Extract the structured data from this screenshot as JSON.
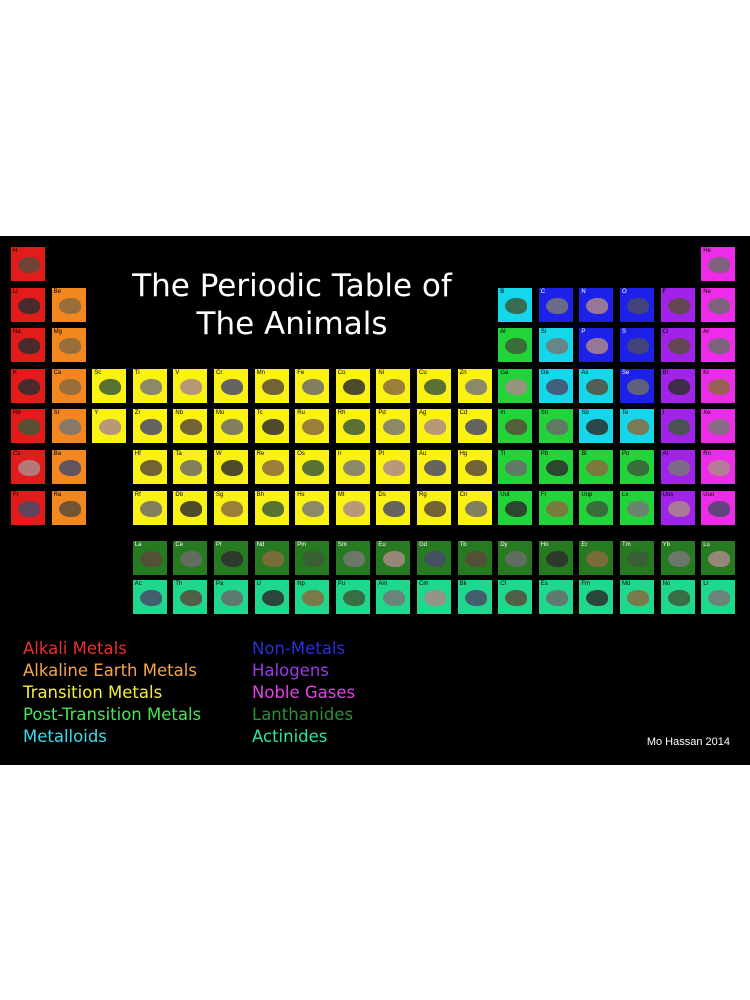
{
  "title_line1": "The Periodic Table of",
  "title_line2": "The Animals",
  "credit": "Mo Hassan 2014",
  "legend_left": [
    {
      "label": "Alkali Metals",
      "color": "#e8312c"
    },
    {
      "label": "Alkaline Earth Metals",
      "color": "#f7a34a"
    },
    {
      "label": "Transition Metals",
      "color": "#f5ef3a"
    },
    {
      "label": "Post-Transition Metals",
      "color": "#46e657"
    },
    {
      "label": "Metalloids",
      "color": "#40d9ea"
    }
  ],
  "legend_right": [
    {
      "label": "Non-Metals",
      "color": "#2a2fd8"
    },
    {
      "label": "Halogens",
      "color": "#9a3be6"
    },
    {
      "label": "Noble Gases",
      "color": "#e245e6"
    },
    {
      "label": "Lanthanides",
      "color": "#2e8f38"
    },
    {
      "label": "Actinides",
      "color": "#31e49a"
    }
  ],
  "category_colors": {
    "alkali": "#e21b1b",
    "alkaline": "#f2861f",
    "transition": "#fbf215",
    "post": "#22d43a",
    "metalloid": "#16d7ea",
    "nonmetal": "#1d20e6",
    "halogen": "#a123ea",
    "noble": "#ef2bea",
    "lanth": "#267a1f",
    "act": "#20d88d"
  },
  "elements": [
    {
      "s": "H",
      "c": "alkali",
      "p": 1,
      "g": 1
    },
    {
      "s": "He",
      "c": "noble",
      "p": 1,
      "g": 18
    },
    {
      "s": "Li",
      "c": "alkali",
      "p": 2,
      "g": 1
    },
    {
      "s": "Be",
      "c": "alkaline",
      "p": 2,
      "g": 2
    },
    {
      "s": "B",
      "c": "metalloid",
      "p": 2,
      "g": 13
    },
    {
      "s": "C",
      "c": "nonmetal",
      "p": 2,
      "g": 14
    },
    {
      "s": "N",
      "c": "nonmetal",
      "p": 2,
      "g": 15
    },
    {
      "s": "O",
      "c": "nonmetal",
      "p": 2,
      "g": 16
    },
    {
      "s": "F",
      "c": "halogen",
      "p": 2,
      "g": 17
    },
    {
      "s": "Ne",
      "c": "noble",
      "p": 2,
      "g": 18
    },
    {
      "s": "Na",
      "c": "alkali",
      "p": 3,
      "g": 1
    },
    {
      "s": "Mg",
      "c": "alkaline",
      "p": 3,
      "g": 2
    },
    {
      "s": "Al",
      "c": "post",
      "p": 3,
      "g": 13
    },
    {
      "s": "Si",
      "c": "metalloid",
      "p": 3,
      "g": 14
    },
    {
      "s": "P",
      "c": "nonmetal",
      "p": 3,
      "g": 15
    },
    {
      "s": "S",
      "c": "nonmetal",
      "p": 3,
      "g": 16
    },
    {
      "s": "Cl",
      "c": "halogen",
      "p": 3,
      "g": 17
    },
    {
      "s": "Ar",
      "c": "noble",
      "p": 3,
      "g": 18
    },
    {
      "s": "K",
      "c": "alkali",
      "p": 4,
      "g": 1
    },
    {
      "s": "Ca",
      "c": "alkaline",
      "p": 4,
      "g": 2
    },
    {
      "s": "Sc",
      "c": "transition",
      "p": 4,
      "g": 3
    },
    {
      "s": "Ti",
      "c": "transition",
      "p": 4,
      "g": 4
    },
    {
      "s": "V",
      "c": "transition",
      "p": 4,
      "g": 5
    },
    {
      "s": "Cr",
      "c": "transition",
      "p": 4,
      "g": 6
    },
    {
      "s": "Mn",
      "c": "transition",
      "p": 4,
      "g": 7
    },
    {
      "s": "Fe",
      "c": "transition",
      "p": 4,
      "g": 8
    },
    {
      "s": "Co",
      "c": "transition",
      "p": 4,
      "g": 9
    },
    {
      "s": "Ni",
      "c": "transition",
      "p": 4,
      "g": 10
    },
    {
      "s": "Cu",
      "c": "transition",
      "p": 4,
      "g": 11
    },
    {
      "s": "Zn",
      "c": "transition",
      "p": 4,
      "g": 12
    },
    {
      "s": "Ga",
      "c": "post",
      "p": 4,
      "g": 13
    },
    {
      "s": "Ge",
      "c": "metalloid",
      "p": 4,
      "g": 14
    },
    {
      "s": "As",
      "c": "metalloid",
      "p": 4,
      "g": 15
    },
    {
      "s": "Se",
      "c": "nonmetal",
      "p": 4,
      "g": 16
    },
    {
      "s": "Br",
      "c": "halogen",
      "p": 4,
      "g": 17
    },
    {
      "s": "Kr",
      "c": "noble",
      "p": 4,
      "g": 18
    },
    {
      "s": "Rb",
      "c": "alkali",
      "p": 5,
      "g": 1
    },
    {
      "s": "Sr",
      "c": "alkaline",
      "p": 5,
      "g": 2
    },
    {
      "s": "Y",
      "c": "transition",
      "p": 5,
      "g": 3
    },
    {
      "s": "Zr",
      "c": "transition",
      "p": 5,
      "g": 4
    },
    {
      "s": "Nb",
      "c": "transition",
      "p": 5,
      "g": 5
    },
    {
      "s": "Mo",
      "c": "transition",
      "p": 5,
      "g": 6
    },
    {
      "s": "Tc",
      "c": "transition",
      "p": 5,
      "g": 7
    },
    {
      "s": "Ru",
      "c": "transition",
      "p": 5,
      "g": 8
    },
    {
      "s": "Rh",
      "c": "transition",
      "p": 5,
      "g": 9
    },
    {
      "s": "Pd",
      "c": "transition",
      "p": 5,
      "g": 10
    },
    {
      "s": "Ag",
      "c": "transition",
      "p": 5,
      "g": 11
    },
    {
      "s": "Cd",
      "c": "transition",
      "p": 5,
      "g": 12
    },
    {
      "s": "In",
      "c": "post",
      "p": 5,
      "g": 13
    },
    {
      "s": "Sn",
      "c": "post",
      "p": 5,
      "g": 14
    },
    {
      "s": "Sb",
      "c": "metalloid",
      "p": 5,
      "g": 15
    },
    {
      "s": "Te",
      "c": "metalloid",
      "p": 5,
      "g": 16
    },
    {
      "s": "I",
      "c": "halogen",
      "p": 5,
      "g": 17
    },
    {
      "s": "Xe",
      "c": "noble",
      "p": 5,
      "g": 18
    },
    {
      "s": "Cs",
      "c": "alkali",
      "p": 6,
      "g": 1
    },
    {
      "s": "Ba",
      "c": "alkaline",
      "p": 6,
      "g": 2
    },
    {
      "s": "Hf",
      "c": "transition",
      "p": 6,
      "g": 4
    },
    {
      "s": "Ta",
      "c": "transition",
      "p": 6,
      "g": 5
    },
    {
      "s": "W",
      "c": "transition",
      "p": 6,
      "g": 6
    },
    {
      "s": "Re",
      "c": "transition",
      "p": 6,
      "g": 7
    },
    {
      "s": "Os",
      "c": "transition",
      "p": 6,
      "g": 8
    },
    {
      "s": "Ir",
      "c": "transition",
      "p": 6,
      "g": 9
    },
    {
      "s": "Pt",
      "c": "transition",
      "p": 6,
      "g": 10
    },
    {
      "s": "Au",
      "c": "transition",
      "p": 6,
      "g": 11
    },
    {
      "s": "Hg",
      "c": "transition",
      "p": 6,
      "g": 12
    },
    {
      "s": "Tl",
      "c": "post",
      "p": 6,
      "g": 13
    },
    {
      "s": "Pb",
      "c": "post",
      "p": 6,
      "g": 14
    },
    {
      "s": "Bi",
      "c": "post",
      "p": 6,
      "g": 15
    },
    {
      "s": "Po",
      "c": "post",
      "p": 6,
      "g": 16
    },
    {
      "s": "At",
      "c": "halogen",
      "p": 6,
      "g": 17
    },
    {
      "s": "Rn",
      "c": "noble",
      "p": 6,
      "g": 18
    },
    {
      "s": "Fr",
      "c": "alkali",
      "p": 7,
      "g": 1
    },
    {
      "s": "Ra",
      "c": "alkaline",
      "p": 7,
      "g": 2
    },
    {
      "s": "Rf",
      "c": "transition",
      "p": 7,
      "g": 4
    },
    {
      "s": "Db",
      "c": "transition",
      "p": 7,
      "g": 5
    },
    {
      "s": "Sg",
      "c": "transition",
      "p": 7,
      "g": 6
    },
    {
      "s": "Bh",
      "c": "transition",
      "p": 7,
      "g": 7
    },
    {
      "s": "Hs",
      "c": "transition",
      "p": 7,
      "g": 8
    },
    {
      "s": "Mt",
      "c": "transition",
      "p": 7,
      "g": 9
    },
    {
      "s": "Ds",
      "c": "transition",
      "p": 7,
      "g": 10
    },
    {
      "s": "Rg",
      "c": "transition",
      "p": 7,
      "g": 11
    },
    {
      "s": "Cn",
      "c": "transition",
      "p": 7,
      "g": 12
    },
    {
      "s": "Uut",
      "c": "post",
      "p": 7,
      "g": 13
    },
    {
      "s": "Fl",
      "c": "post",
      "p": 7,
      "g": 14
    },
    {
      "s": "Uup",
      "c": "post",
      "p": 7,
      "g": 15
    },
    {
      "s": "Lv",
      "c": "post",
      "p": 7,
      "g": 16
    },
    {
      "s": "Uus",
      "c": "halogen",
      "p": 7,
      "g": 17
    },
    {
      "s": "Uuo",
      "c": "noble",
      "p": 7,
      "g": 18
    }
  ],
  "f_block": [
    {
      "s": "La",
      "c": "lanth",
      "p": 9,
      "g": 4
    },
    {
      "s": "Ce",
      "c": "lanth",
      "p": 9,
      "g": 5
    },
    {
      "s": "Pr",
      "c": "lanth",
      "p": 9,
      "g": 6
    },
    {
      "s": "Nd",
      "c": "lanth",
      "p": 9,
      "g": 7
    },
    {
      "s": "Pm",
      "c": "lanth",
      "p": 9,
      "g": 8
    },
    {
      "s": "Sm",
      "c": "lanth",
      "p": 9,
      "g": 9
    },
    {
      "s": "Eu",
      "c": "lanth",
      "p": 9,
      "g": 10
    },
    {
      "s": "Gd",
      "c": "lanth",
      "p": 9,
      "g": 11
    },
    {
      "s": "Tb",
      "c": "lanth",
      "p": 9,
      "g": 12
    },
    {
      "s": "Dy",
      "c": "lanth",
      "p": 9,
      "g": 13
    },
    {
      "s": "Ho",
      "c": "lanth",
      "p": 9,
      "g": 14
    },
    {
      "s": "Er",
      "c": "lanth",
      "p": 9,
      "g": 15
    },
    {
      "s": "Tm",
      "c": "lanth",
      "p": 9,
      "g": 16
    },
    {
      "s": "Yb",
      "c": "lanth",
      "p": 9,
      "g": 17
    },
    {
      "s": "Lu",
      "c": "lanth",
      "p": 9,
      "g": 18
    },
    {
      "s": "Ac",
      "c": "act",
      "p": 10,
      "g": 4
    },
    {
      "s": "Th",
      "c": "act",
      "p": 10,
      "g": 5
    },
    {
      "s": "Pa",
      "c": "act",
      "p": 10,
      "g": 6
    },
    {
      "s": "U",
      "c": "act",
      "p": 10,
      "g": 7
    },
    {
      "s": "Np",
      "c": "act",
      "p": 10,
      "g": 8
    },
    {
      "s": "Pu",
      "c": "act",
      "p": 10,
      "g": 9
    },
    {
      "s": "Am",
      "c": "act",
      "p": 10,
      "g": 10
    },
    {
      "s": "Cm",
      "c": "act",
      "p": 10,
      "g": 11
    },
    {
      "s": "Bk",
      "c": "act",
      "p": 10,
      "g": 12
    },
    {
      "s": "Cf",
      "c": "act",
      "p": 10,
      "g": 13
    },
    {
      "s": "Es",
      "c": "act",
      "p": 10,
      "g": 14
    },
    {
      "s": "Fm",
      "c": "act",
      "p": 10,
      "g": 15
    },
    {
      "s": "Md",
      "c": "act",
      "p": 10,
      "g": 16
    },
    {
      "s": "No",
      "c": "act",
      "p": 10,
      "g": 17
    },
    {
      "s": "Lr",
      "c": "act",
      "p": 10,
      "g": 18
    }
  ]
}
